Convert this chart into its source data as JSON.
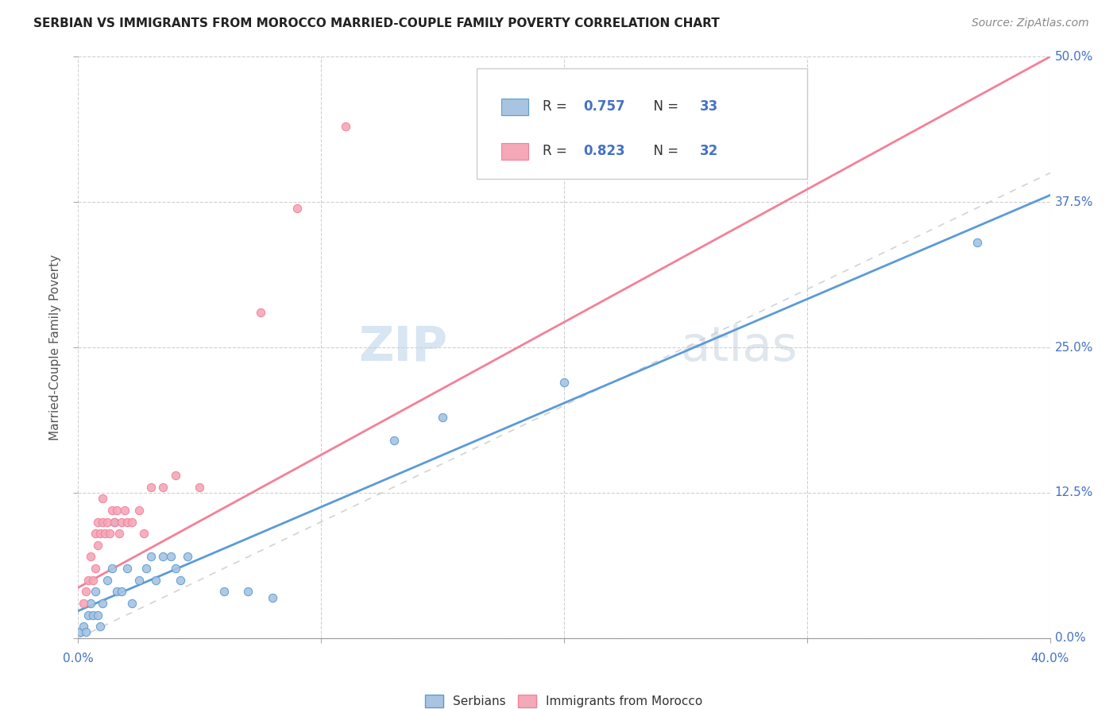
{
  "title": "SERBIAN VS IMMIGRANTS FROM MOROCCO MARRIED-COUPLE FAMILY POVERTY CORRELATION CHART",
  "source": "Source: ZipAtlas.com",
  "ylabel": "Married-Couple Family Poverty",
  "xlim": [
    0.0,
    0.4
  ],
  "ylim": [
    0.0,
    0.5
  ],
  "legend_label1": "Serbians",
  "legend_label2": "Immigrants from Morocco",
  "color_serbian": "#a8c4e0",
  "color_morocco": "#f4a8b8",
  "color_line_serbian": "#5b9bd5",
  "color_line_morocco": "#f48099",
  "color_diagonal": "#c8c8c8",
  "watermark_zip": "ZIP",
  "watermark_atlas": "atlas",
  "r1": "0.757",
  "n1": "33",
  "r2": "0.823",
  "n2": "32",
  "serbian_points": [
    [
      0.001,
      0.005
    ],
    [
      0.002,
      0.01
    ],
    [
      0.003,
      0.005
    ],
    [
      0.004,
      0.02
    ],
    [
      0.005,
      0.03
    ],
    [
      0.006,
      0.02
    ],
    [
      0.007,
      0.04
    ],
    [
      0.008,
      0.02
    ],
    [
      0.009,
      0.01
    ],
    [
      0.01,
      0.03
    ],
    [
      0.012,
      0.05
    ],
    [
      0.014,
      0.06
    ],
    [
      0.015,
      0.1
    ],
    [
      0.016,
      0.04
    ],
    [
      0.018,
      0.04
    ],
    [
      0.02,
      0.06
    ],
    [
      0.022,
      0.03
    ],
    [
      0.025,
      0.05
    ],
    [
      0.028,
      0.06
    ],
    [
      0.03,
      0.07
    ],
    [
      0.032,
      0.05
    ],
    [
      0.035,
      0.07
    ],
    [
      0.038,
      0.07
    ],
    [
      0.04,
      0.06
    ],
    [
      0.042,
      0.05
    ],
    [
      0.045,
      0.07
    ],
    [
      0.06,
      0.04
    ],
    [
      0.07,
      0.04
    ],
    [
      0.08,
      0.035
    ],
    [
      0.13,
      0.17
    ],
    [
      0.15,
      0.19
    ],
    [
      0.2,
      0.22
    ],
    [
      0.37,
      0.34
    ]
  ],
  "morocco_points": [
    [
      0.002,
      0.03
    ],
    [
      0.003,
      0.04
    ],
    [
      0.004,
      0.05
    ],
    [
      0.005,
      0.07
    ],
    [
      0.006,
      0.05
    ],
    [
      0.007,
      0.06
    ],
    [
      0.007,
      0.09
    ],
    [
      0.008,
      0.08
    ],
    [
      0.008,
      0.1
    ],
    [
      0.009,
      0.09
    ],
    [
      0.01,
      0.1
    ],
    [
      0.01,
      0.12
    ],
    [
      0.011,
      0.09
    ],
    [
      0.012,
      0.1
    ],
    [
      0.013,
      0.09
    ],
    [
      0.014,
      0.11
    ],
    [
      0.015,
      0.1
    ],
    [
      0.016,
      0.11
    ],
    [
      0.017,
      0.09
    ],
    [
      0.018,
      0.1
    ],
    [
      0.019,
      0.11
    ],
    [
      0.02,
      0.1
    ],
    [
      0.022,
      0.1
    ],
    [
      0.025,
      0.11
    ],
    [
      0.027,
      0.09
    ],
    [
      0.03,
      0.13
    ],
    [
      0.035,
      0.13
    ],
    [
      0.04,
      0.14
    ],
    [
      0.05,
      0.13
    ],
    [
      0.075,
      0.28
    ],
    [
      0.09,
      0.37
    ],
    [
      0.11,
      0.44
    ]
  ]
}
